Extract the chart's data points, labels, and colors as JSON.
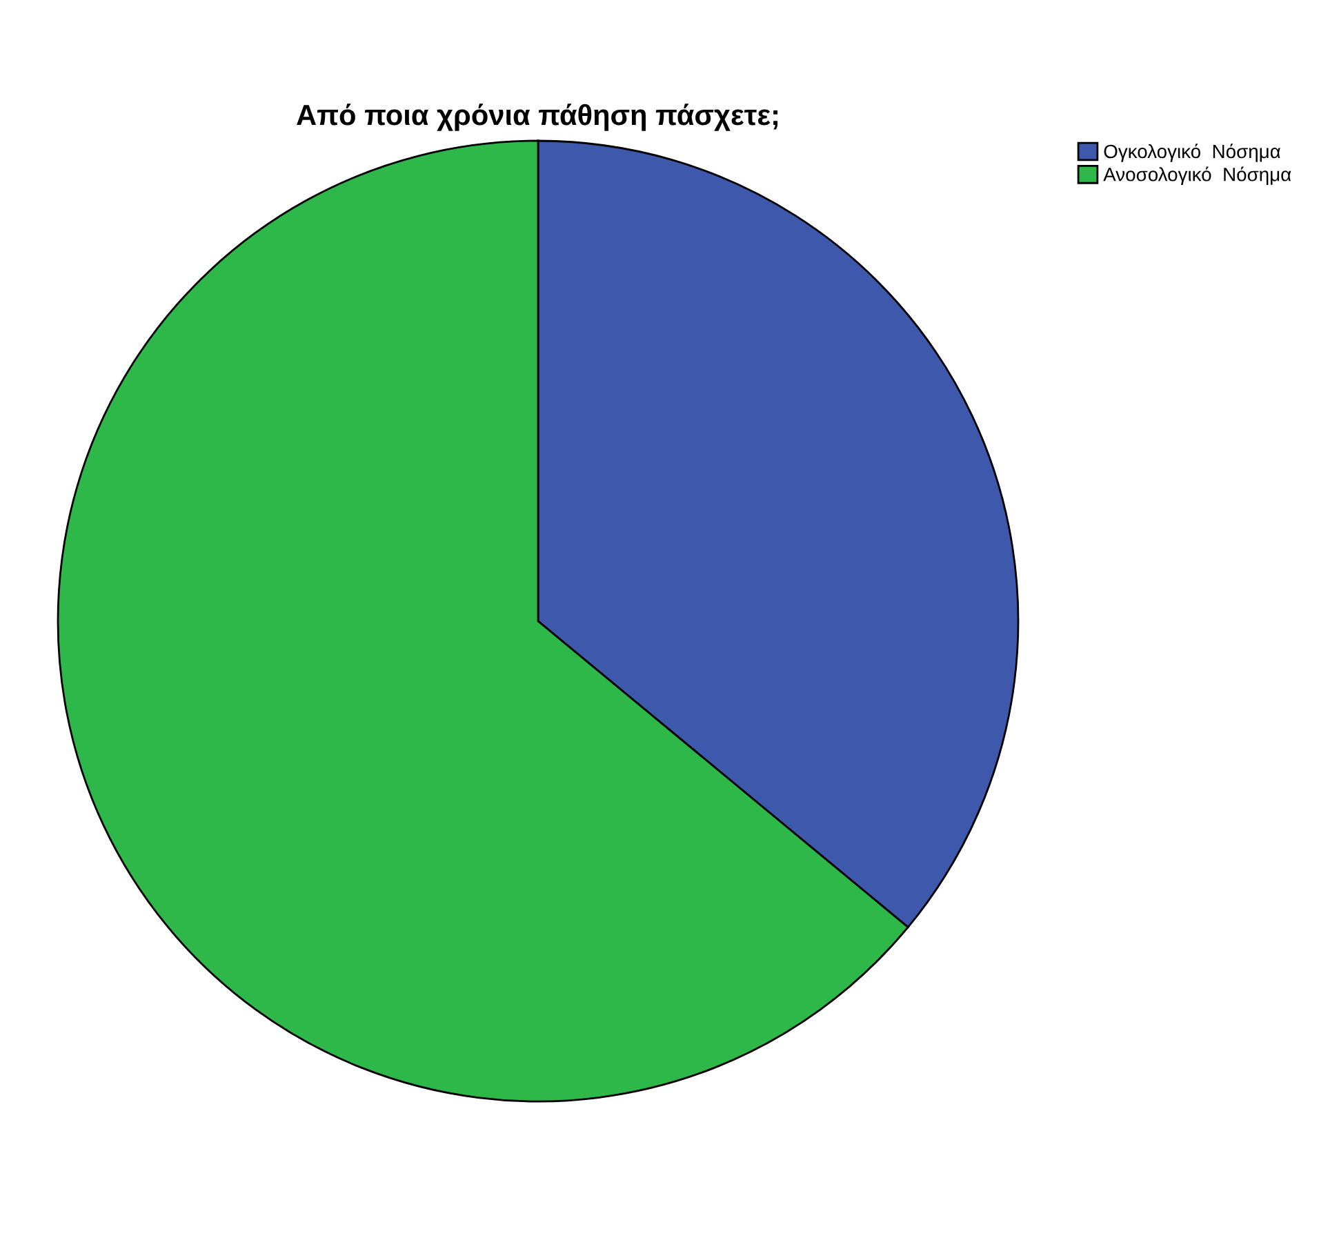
{
  "chart_data": {
    "type": "pie",
    "title": "Από ποια χρόνια πάθηση πάσχετε;",
    "categories": [
      "Ογκολογικό  Νόσημα",
      "Ανοσολογικό  Νόσημα"
    ],
    "values": [
      36,
      64
    ],
    "colors": [
      "#3e58ac",
      "#2eb84a"
    ],
    "legend": "top right"
  }
}
